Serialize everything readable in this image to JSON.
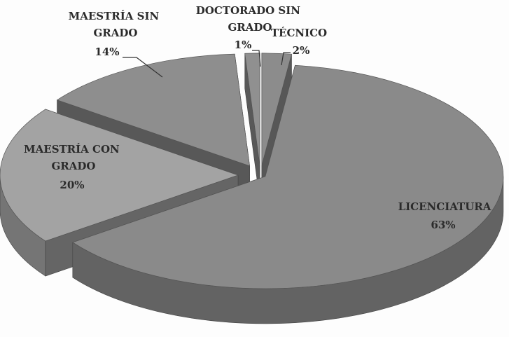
{
  "chart_data": {
    "type": "pie3d",
    "categories": [
      "TÉCNICO",
      "LICENCIATURA",
      "MAESTRÍA CON GRADO",
      "MAESTRÍA SIN GRADO",
      "DOCTORADO SIN GRADO"
    ],
    "values": [
      2,
      63,
      20,
      14,
      1
    ],
    "value_labels": [
      "2%",
      "63%",
      "20%",
      "14%",
      "1%"
    ],
    "colors": [
      "#8c8c8c",
      "#8a8a8a",
      "#a3a3a3",
      "#8e8e8e",
      "#909090"
    ]
  }
}
